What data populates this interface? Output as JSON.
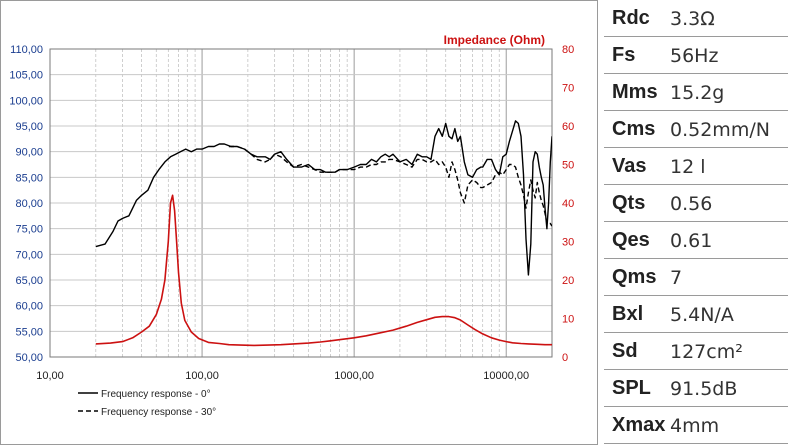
{
  "chart_data": {
    "type": "line",
    "title": "",
    "xscale": "log",
    "xlim": [
      10,
      20000
    ],
    "ylim": [
      50,
      110
    ],
    "y2lim": [
      0,
      80
    ],
    "grid": true,
    "x_tick_labels": [
      "10,00",
      "100,00",
      "1000,00",
      "10000,00"
    ],
    "x_tick_values": [
      10,
      100,
      1000,
      10000
    ],
    "y_tick_labels": [
      "50,00",
      "55,00",
      "60,00",
      "65,00",
      "70,00",
      "75,00",
      "80,00",
      "85,00",
      "90,00",
      "95,00",
      "100,00",
      "105,00",
      "110,00"
    ],
    "y_tick_values": [
      50,
      55,
      60,
      65,
      70,
      75,
      80,
      85,
      90,
      95,
      100,
      105,
      110
    ],
    "y2_tick_labels": [
      "0",
      "10",
      "20",
      "30",
      "40",
      "50",
      "60",
      "70",
      "80"
    ],
    "y2_tick_values": [
      0,
      10,
      20,
      30,
      40,
      50,
      60,
      70,
      80
    ],
    "y2label": "Impedance (Ohm)",
    "colors": {
      "response": "#000000",
      "impedance": "#cc1111",
      "axis_y2": "#cc1111",
      "axis_y": "#1a3d8f"
    },
    "legend_position": "bottom-left",
    "series": [
      {
        "name": "Frequency response - 0°",
        "axis": "y",
        "style": "solid",
        "x": [
          20,
          23,
          26,
          28,
          30,
          33,
          37,
          40,
          44,
          48,
          52,
          57,
          62,
          67,
          72,
          78,
          85,
          92,
          100,
          110,
          120,
          130,
          140,
          155,
          170,
          190,
          210,
          230,
          260,
          280,
          300,
          330,
          360,
          400,
          450,
          500,
          550,
          600,
          650,
          700,
          750,
          800,
          900,
          1000,
          1100,
          1200,
          1300,
          1400,
          1500,
          1600,
          1700,
          1800,
          2000,
          2200,
          2400,
          2600,
          2800,
          3000,
          3200,
          3400,
          3600,
          3800,
          4000,
          4200,
          4400,
          4600,
          4800,
          5000,
          5300,
          5600,
          6000,
          6400,
          6800,
          7000,
          7500,
          8000,
          8500,
          9000,
          9500,
          10000,
          10500,
          11000,
          11500,
          12000,
          12500,
          13000,
          13500,
          14000,
          14500,
          15000,
          15500,
          16000,
          16500,
          17000,
          17500,
          18000,
          18500,
          19000,
          19500,
          20000
        ],
        "y": [
          71.5,
          72.0,
          74.5,
          76.5,
          77.0,
          77.5,
          80.5,
          81.5,
          82.5,
          85.0,
          86.5,
          88.0,
          89.0,
          89.5,
          90.0,
          90.5,
          90.0,
          90.5,
          90.5,
          91.0,
          91.0,
          91.5,
          91.5,
          91.0,
          91.0,
          90.5,
          89.5,
          89.0,
          89.0,
          88.5,
          89.5,
          90.0,
          88.5,
          87.0,
          87.0,
          87.5,
          86.5,
          86.5,
          86.0,
          86.0,
          86.0,
          86.5,
          86.5,
          87.0,
          87.5,
          87.5,
          88.5,
          88.0,
          89.0,
          89.5,
          89.0,
          89.5,
          88.0,
          88.5,
          87.5,
          89.5,
          89.0,
          89.0,
          88.5,
          93.0,
          94.5,
          93.0,
          95.5,
          93.0,
          92.5,
          94.5,
          92.0,
          93.0,
          88.0,
          85.5,
          85.0,
          86.5,
          87.0,
          87.0,
          88.5,
          88.5,
          86.5,
          85.5,
          89.0,
          89.5,
          92.0,
          94.0,
          96.0,
          95.5,
          93.0,
          85.5,
          73.0,
          66.0,
          72.0,
          88.0,
          90.0,
          89.5,
          87.0,
          85.0,
          83.5,
          79.0,
          75.0,
          80.0,
          88.0,
          93.0
        ]
      },
      {
        "name": "Frequency response - 30°",
        "axis": "y",
        "style": "dashed",
        "x": [
          150,
          170,
          190,
          210,
          230,
          260,
          280,
          300,
          330,
          360,
          400,
          450,
          500,
          550,
          600,
          650,
          700,
          750,
          800,
          900,
          1000,
          1100,
          1200,
          1300,
          1400,
          1500,
          1600,
          1700,
          1800,
          2000,
          2200,
          2400,
          2600,
          2800,
          3000,
          3200,
          3400,
          3600,
          3800,
          4000,
          4200,
          4400,
          4600,
          4800,
          5000,
          5300,
          5600,
          6000,
          6400,
          6800,
          7000,
          7500,
          8000,
          8500,
          9000,
          9500,
          10000,
          10500,
          11000,
          11500,
          12000,
          12500,
          13000,
          13500,
          14000,
          14500,
          15000,
          15500,
          16000,
          16500,
          17000,
          17500,
          18000,
          18500,
          19000,
          19500,
          20000
        ],
        "y": [
          91.0,
          91.0,
          90.5,
          89.5,
          88.5,
          88.0,
          88.5,
          89.5,
          89.0,
          88.0,
          87.0,
          87.5,
          87.0,
          86.5,
          86.0,
          86.0,
          86.0,
          86.0,
          86.5,
          86.5,
          86.5,
          87.0,
          87.0,
          87.5,
          87.5,
          88.0,
          88.0,
          88.5,
          88.5,
          88.0,
          87.5,
          87.0,
          88.5,
          88.5,
          88.0,
          88.0,
          88.5,
          87.5,
          88.0,
          87.0,
          85.0,
          88.0,
          86.5,
          84.5,
          82.0,
          80.0,
          83.5,
          84.5,
          84.0,
          83.0,
          83.0,
          83.5,
          84.0,
          85.5,
          86.0,
          85.5,
          86.5,
          87.5,
          87.5,
          87.0,
          85.0,
          83.5,
          81.5,
          79.0,
          82.0,
          84.5,
          82.5,
          81.0,
          84.0,
          82.0,
          80.5,
          79.5,
          78.0,
          76.0,
          76.0,
          76.0,
          75.5
        ]
      },
      {
        "name": "",
        "axis": "y2",
        "style": "solid",
        "x": [
          20,
          25,
          30,
          35,
          40,
          45,
          50,
          54,
          57,
          60,
          62,
          64,
          66,
          68,
          70,
          73,
          77,
          85,
          95,
          110,
          130,
          150,
          180,
          220,
          270,
          330,
          400,
          500,
          600,
          700,
          800,
          1000,
          1200,
          1500,
          1800,
          2200,
          2600,
          3000,
          3400,
          3800,
          4200,
          4600,
          5000,
          5600,
          6200,
          7000,
          8000,
          9000,
          10000,
          11000,
          12500,
          14000,
          16000,
          18000,
          20000
        ],
        "y": [
          3.4,
          3.6,
          4.0,
          5.0,
          6.5,
          8.0,
          11.0,
          15.0,
          20.0,
          30.0,
          40.0,
          42.0,
          38.0,
          30.0,
          22.0,
          14.0,
          9.5,
          6.5,
          4.8,
          3.8,
          3.5,
          3.2,
          3.1,
          3.0,
          3.1,
          3.2,
          3.4,
          3.6,
          3.9,
          4.2,
          4.5,
          5.0,
          5.5,
          6.3,
          7.0,
          8.0,
          9.0,
          9.7,
          10.3,
          10.5,
          10.5,
          10.2,
          9.6,
          8.3,
          7.2,
          6.0,
          5.0,
          4.4,
          4.0,
          3.7,
          3.5,
          3.4,
          3.3,
          3.2,
          3.2
        ]
      }
    ]
  },
  "specs": [
    {
      "name": "Rdc",
      "value": "3.3Ω"
    },
    {
      "name": "Fs",
      "value": "56Hz"
    },
    {
      "name": "Mms",
      "value": "15.2g"
    },
    {
      "name": "Cms",
      "value": "0.52mm/N"
    },
    {
      "name": "Vas",
      "value": "12 l"
    },
    {
      "name": "Qts",
      "value": "0.56"
    },
    {
      "name": "Qes",
      "value": "0.61"
    },
    {
      "name": "Qms",
      "value": "7"
    },
    {
      "name": "Bxl",
      "value": "5.4N/A"
    },
    {
      "name": "Sd",
      "value": "127cm²"
    },
    {
      "name": "SPL",
      "value": "91.5dB"
    },
    {
      "name": "Xmax",
      "value": "4mm"
    }
  ]
}
